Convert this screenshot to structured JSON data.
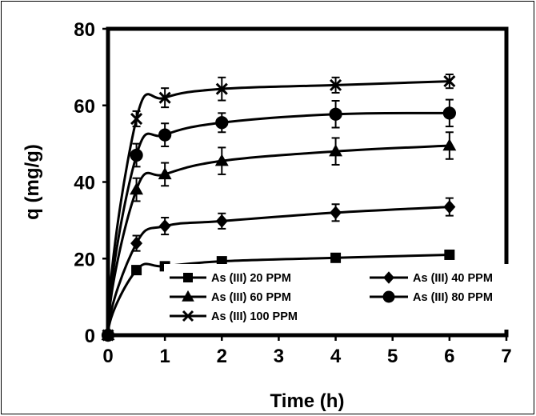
{
  "chart_data": {
    "type": "line",
    "title": "",
    "xlabel": "Time (h)",
    "ylabel": "q (mg/g)",
    "xlim": [
      0,
      7
    ],
    "ylim": [
      0,
      80
    ],
    "x_ticks": [
      0,
      1,
      2,
      3,
      4,
      5,
      6,
      7
    ],
    "y_ticks": [
      0,
      20,
      40,
      60,
      80
    ],
    "grid": false,
    "legend_position": "inside-bottom",
    "x": [
      0,
      0.5,
      1,
      2,
      4,
      6
    ],
    "series": [
      {
        "name": "As (III) 20 PPM",
        "marker": "square",
        "values": [
          0,
          17.0,
          18.0,
          19.3,
          20.2,
          21.0
        ],
        "errors": [
          0,
          0.8,
          1.0,
          1.0,
          1.0,
          1.0
        ]
      },
      {
        "name": "As (III) 40 PPM",
        "marker": "diamond",
        "values": [
          0,
          24.0,
          28.5,
          29.8,
          32.0,
          33.5
        ],
        "errors": [
          0,
          2.0,
          2.2,
          2.0,
          2.2,
          2.3
        ]
      },
      {
        "name": "As (III) 60 PPM",
        "marker": "triangle",
        "values": [
          0,
          38.0,
          42.0,
          45.5,
          48.0,
          49.5
        ],
        "errors": [
          0,
          3.0,
          3.0,
          3.5,
          3.5,
          3.5
        ]
      },
      {
        "name": "As (III) 80 PPM",
        "marker": "circle",
        "values": [
          0,
          47.0,
          52.3,
          55.5,
          57.7,
          58.0
        ],
        "errors": [
          0,
          3.0,
          3.0,
          2.5,
          3.5,
          3.5
        ]
      },
      {
        "name": "As (III) 100 PPM",
        "marker": "x",
        "values": [
          0,
          56.5,
          62.0,
          64.3,
          65.3,
          66.3
        ],
        "errors": [
          0,
          2.0,
          2.5,
          3.0,
          2.0,
          1.8
        ]
      }
    ],
    "line_color": "#000000"
  }
}
